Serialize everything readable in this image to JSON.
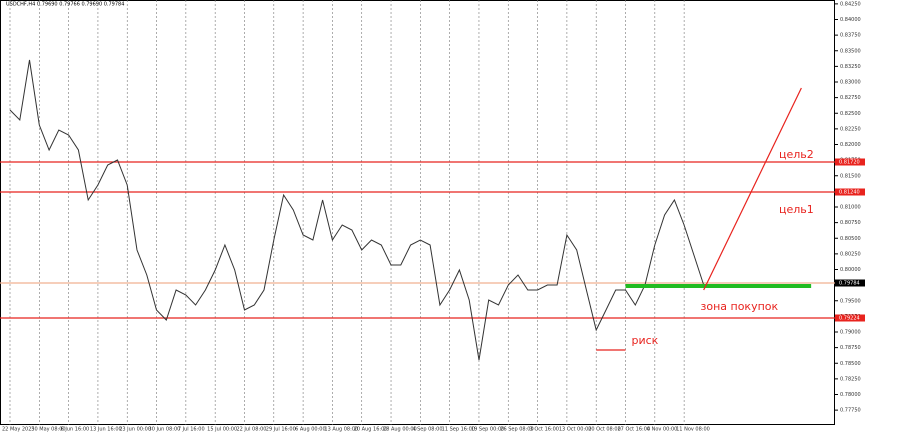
{
  "chart_data": {
    "type": "line",
    "header": "USDCHF,H4  0.79690 0.79766 0.79690 0.79784",
    "categories": [
      "22 May 2025",
      null,
      null,
      "30 May 08:00",
      null,
      null,
      "6 Jun 16:00",
      null,
      null,
      "13 Jun 16:00",
      null,
      null,
      "23 Jun 00:00",
      null,
      null,
      "30 Jun 08:00",
      null,
      null,
      "7 Jul 16:00",
      null,
      null,
      "15 Jul 00:00",
      null,
      null,
      "22 Jul 08:00",
      null,
      null,
      "29 Jul 16:00",
      null,
      null,
      "6 Aug 00:00",
      null,
      null,
      "13 Aug 08:00",
      null,
      null,
      "20 Aug 16:00",
      null,
      null,
      "28 Aug 00:00",
      null,
      null,
      "4 Sep 08:00",
      null,
      null,
      "11 Sep 16:00",
      null,
      null,
      "19 Sep 00:00",
      null,
      null,
      "26 Sep 08:00",
      null,
      null,
      "3 Oct 16:00",
      null,
      null,
      "13 Oct 00:00",
      null,
      null,
      "20 Oct 08:00",
      null,
      null,
      "27 Oct 16:00",
      null,
      null,
      "4 Nov 00:00",
      null,
      null,
      "11 Nov 08:00",
      null,
      null
    ],
    "series": [
      {
        "name": "USDCHF",
        "color": "#333333",
        "values": [
          0.82552,
          0.82392,
          0.83352,
          0.82312,
          0.81912,
          0.82232,
          0.82152,
          0.81912,
          0.81112,
          0.81352,
          0.81672,
          0.81752,
          0.81352,
          0.80312,
          0.79912,
          0.79352,
          0.79192,
          0.79672,
          0.79592,
          0.79432,
          0.79672,
          0.79992,
          0.80392,
          0.79992,
          0.79352,
          0.79432,
          0.79672,
          0.80472,
          0.81192,
          0.80952,
          0.80552,
          0.80472,
          0.81112,
          0.80472,
          0.80712,
          0.80632,
          0.80312,
          0.80472,
          0.80392,
          0.80072,
          0.80072,
          0.80392,
          0.80472,
          0.80392,
          0.79432,
          0.79672,
          0.79992,
          0.79512,
          0.78552,
          0.79512,
          0.79432,
          0.79752,
          0.79912,
          0.79672,
          0.79672,
          0.79752,
          0.79752,
          0.80552,
          0.80312,
          0.79672,
          0.79032,
          0.79352,
          0.79672,
          0.79672,
          0.79432,
          0.79752,
          0.80392,
          0.80872,
          0.81112,
          0.80712,
          0.80232,
          0.79752
        ]
      }
    ],
    "ylim": [
      0.77512,
      0.84312
    ],
    "yticks": [
      {
        "value": 0.7775,
        "label": "0.77750"
      },
      {
        "value": 0.78,
        "label": "0.78000"
      },
      {
        "value": 0.7825,
        "label": "0.78250"
      },
      {
        "value": 0.785,
        "label": "0.78500"
      },
      {
        "value": 0.7875,
        "label": "0.78750"
      },
      {
        "value": 0.79,
        "label": "0.79000"
      },
      {
        "value": 0.7925,
        "label": "0.79250"
      },
      {
        "value": 0.795,
        "label": "0.79500"
      },
      {
        "value": 0.7975,
        "label": "0.79750"
      },
      {
        "value": 0.8,
        "label": "0.80000"
      },
      {
        "value": 0.8025,
        "label": "0.80250"
      },
      {
        "value": 0.805,
        "label": "0.80500"
      },
      {
        "value": 0.8075,
        "label": "0.80750"
      },
      {
        "value": 0.81,
        "label": "0.81000"
      },
      {
        "value": 0.8125,
        "label": "0.81250"
      },
      {
        "value": 0.815,
        "label": "0.81500"
      },
      {
        "value": 0.8175,
        "label": "0.81750"
      },
      {
        "value": 0.82,
        "label": "0.82000"
      },
      {
        "value": 0.8225,
        "label": "0.82250"
      },
      {
        "value": 0.825,
        "label": "0.82500"
      },
      {
        "value": 0.8275,
        "label": "0.82750"
      },
      {
        "value": 0.83,
        "label": "0.83000"
      },
      {
        "value": 0.8325,
        "label": "0.83250"
      },
      {
        "value": 0.835,
        "label": "0.83500"
      },
      {
        "value": 0.8375,
        "label": "0.83750"
      },
      {
        "value": 0.84,
        "label": "0.84000"
      },
      {
        "value": 0.8425,
        "label": "0.84250"
      }
    ],
    "levels": [
      {
        "value": 0.8172,
        "label": "0.81720",
        "color": "#e8231e"
      },
      {
        "value": 0.8124,
        "label": "0.81240",
        "color": "#e8231e"
      },
      {
        "value": 0.79784,
        "label": "0.79784",
        "color": "#f0b090"
      },
      {
        "value": 0.79224,
        "label": "0.79224",
        "color": "#e8231e"
      }
    ],
    "buy_zone": {
      "value": 0.79736,
      "x": [
        63,
        82
      ],
      "color": "#22bb22",
      "label": "зона покупок"
    },
    "risk": {
      "value": 0.78712,
      "x": [
        60,
        63
      ],
      "color": "#e8231e",
      "label": "риск"
    },
    "target_line": {
      "x": [
        71,
        81
      ],
      "values": [
        0.79672,
        0.82904
      ],
      "color": "#e8231e"
    },
    "annotations": [
      {
        "text": "цель2",
        "value": 0.81832
      },
      {
        "text": "цель1",
        "value": 0.80952
      }
    ]
  }
}
